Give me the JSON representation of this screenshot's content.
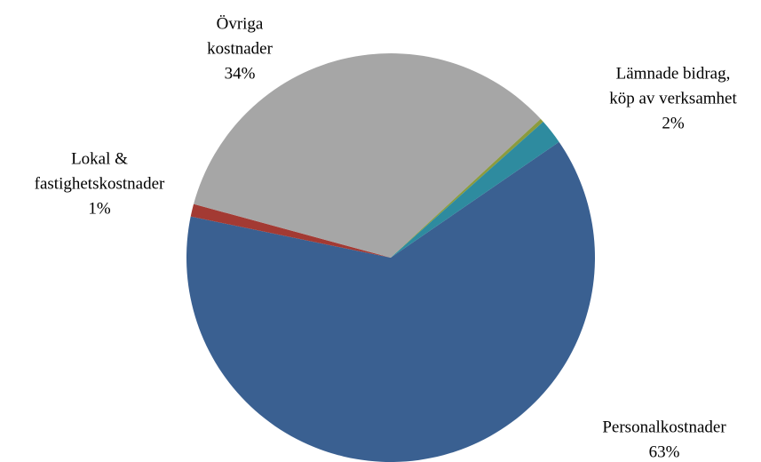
{
  "chart_data": {
    "type": "pie",
    "categories": [
      [
        "Personalkostnader"
      ],
      [
        "Lokal &",
        "fastighetskostnader"
      ],
      [
        "Övriga",
        "kostnader"
      ],
      null,
      [
        "Lämnade bidrag,",
        "köp av verksamhet"
      ]
    ],
    "values": [
      63,
      1,
      34,
      0.3,
      2
    ],
    "value_labels": [
      "63%",
      "1%",
      "34%",
      null,
      "2%"
    ],
    "colors": [
      "#3a6091",
      "#a33a33",
      "#a6a6a6",
      "#8c9b3e",
      "#2e8b9f"
    ]
  }
}
